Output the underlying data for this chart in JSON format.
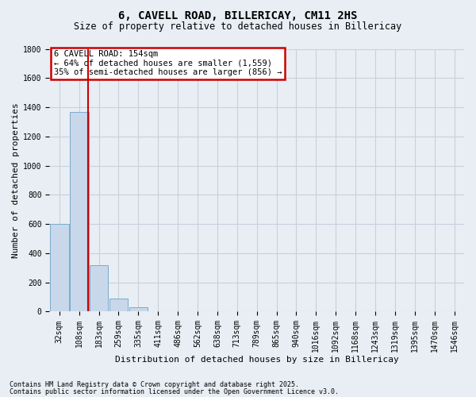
{
  "title_line1": "6, CAVELL ROAD, BILLERICAY, CM11 2HS",
  "title_line2": "Size of property relative to detached houses in Billericay",
  "xlabel": "Distribution of detached houses by size in Billericay",
  "ylabel": "Number of detached properties",
  "categories": [
    "32sqm",
    "108sqm",
    "183sqm",
    "259sqm",
    "335sqm",
    "411sqm",
    "486sqm",
    "562sqm",
    "638sqm",
    "713sqm",
    "789sqm",
    "865sqm",
    "940sqm",
    "1016sqm",
    "1092sqm",
    "1168sqm",
    "1243sqm",
    "1319sqm",
    "1395sqm",
    "1470sqm",
    "1546sqm"
  ],
  "values": [
    600,
    1370,
    320,
    90,
    30,
    5,
    2,
    1,
    0,
    0,
    0,
    0,
    0,
    0,
    0,
    0,
    0,
    0,
    0,
    0,
    0
  ],
  "bar_color": "#c8d8ea",
  "bar_edge_color": "#7aaacc",
  "grid_color": "#c8d0dc",
  "vline_color": "#cc0000",
  "vline_x": 1.45,
  "annotation_text": "6 CAVELL ROAD: 154sqm\n← 64% of detached houses are smaller (1,559)\n35% of semi-detached houses are larger (856) →",
  "annotation_box_edgecolor": "#cc0000",
  "annotation_box_facecolor": "#ffffff",
  "ylim": [
    0,
    1800
  ],
  "yticks": [
    0,
    200,
    400,
    600,
    800,
    1000,
    1200,
    1400,
    1600,
    1800
  ],
  "footer_line1": "Contains HM Land Registry data © Crown copyright and database right 2025.",
  "footer_line2": "Contains public sector information licensed under the Open Government Licence v3.0.",
  "background_color": "#e8eef4",
  "title_fontsize": 10,
  "subtitle_fontsize": 8.5,
  "tick_fontsize": 7,
  "label_fontsize": 8
}
